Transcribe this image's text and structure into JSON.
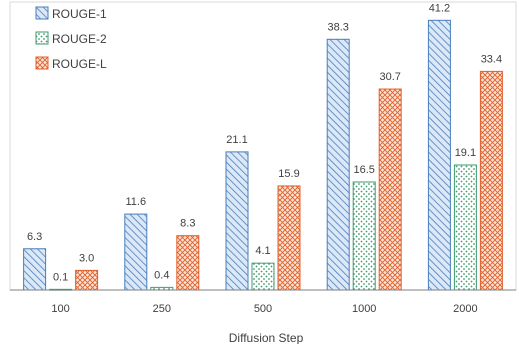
{
  "chart_data": {
    "type": "bar",
    "title": "",
    "xlabel": "Diffusion Step",
    "ylabel": "",
    "categories": [
      "100",
      "250",
      "500",
      "1000",
      "2000"
    ],
    "series": [
      {
        "name": "ROUGE-1",
        "values": [
          6.3,
          11.6,
          21.1,
          38.3,
          41.2
        ],
        "labels": [
          "6.3",
          "11.6",
          "21.1",
          "38.3",
          "41.2"
        ],
        "color": "#4a7ebb",
        "fill": "#dbe8f7",
        "pattern": "diagonal-hatch"
      },
      {
        "name": "ROUGE-2",
        "values": [
          0.1,
          0.4,
          4.1,
          16.5,
          19.1
        ],
        "labels": [
          "0.1",
          "0.4",
          "4.1",
          "16.5",
          "19.1"
        ],
        "color": "#3f9a6e",
        "fill": "#e8f5ee",
        "pattern": "dots"
      },
      {
        "name": "ROUGE-L",
        "values": [
          3.0,
          8.3,
          15.9,
          30.7,
          33.4
        ],
        "labels": [
          "3.0",
          "8.3",
          "15.9",
          "30.7",
          "33.4"
        ],
        "color": "#e0602c",
        "fill": "#fbe3d6",
        "pattern": "cross-hatch"
      }
    ],
    "ylim": [
      0,
      44
    ],
    "grid": false,
    "legend": "top-left"
  }
}
